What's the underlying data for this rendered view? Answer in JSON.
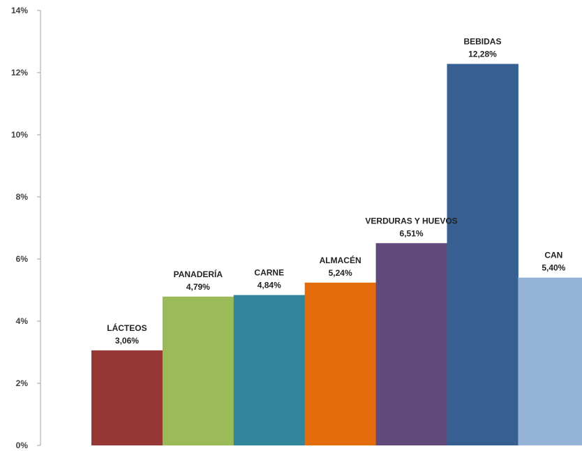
{
  "chart_data": {
    "type": "bar",
    "categories": [
      "LÁCTEOS",
      "PANADERÍA",
      "CARNE",
      "ALMACÉN",
      "VERDURAS Y HUEVOS",
      "BEBIDAS",
      "CAN"
    ],
    "values": [
      3.06,
      4.79,
      4.84,
      5.24,
      6.51,
      12.28,
      5.4
    ],
    "value_labels": [
      "3,06%",
      "4,79%",
      "4,84%",
      "5,24%",
      "6,51%",
      "12,28%",
      "5,40%"
    ],
    "colors": [
      "#953735",
      "#9BBB59",
      "#31859C",
      "#E46C0A",
      "#604A7B",
      "#376092",
      "#95B3D7"
    ],
    "ylim": [
      0,
      14
    ],
    "yticks": [
      0,
      2,
      4,
      6,
      8,
      10,
      12,
      14
    ],
    "ytick_labels": [
      "0%",
      "2%",
      "4%",
      "6%",
      "8%",
      "10%",
      "12%",
      "14%"
    ],
    "grid": false,
    "legend": "none"
  }
}
